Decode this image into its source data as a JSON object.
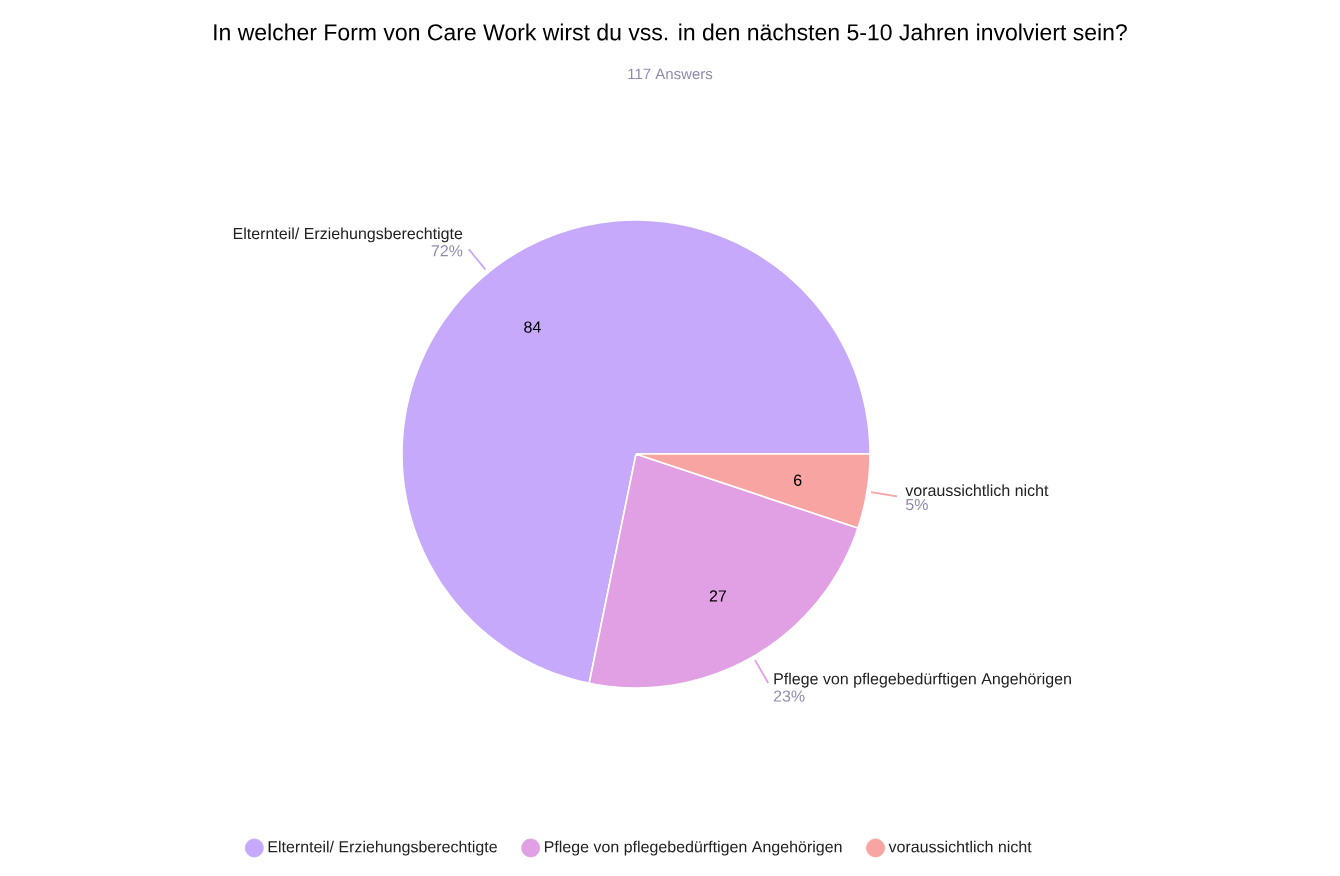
{
  "chart_data": {
    "type": "pie",
    "title": "In welcher Form von Care Work wirst du vss. in den nächsten 5-10 Jahren involviert sein?",
    "subtitle": "117 Answers",
    "categories": [
      "Elternteil/ Erziehungsberechtigte",
      "Pflege von pflegebedürftigen Angehörigen",
      "voraussichtlich nicht"
    ],
    "values": [
      84,
      27,
      6
    ],
    "colors": [
      "#c6a9fb",
      "#e2a0e4",
      "#f8a4a2"
    ],
    "annotations": [
      "72%",
      "23%",
      "5%"
    ],
    "data_labels": true,
    "legend": "bottom"
  }
}
